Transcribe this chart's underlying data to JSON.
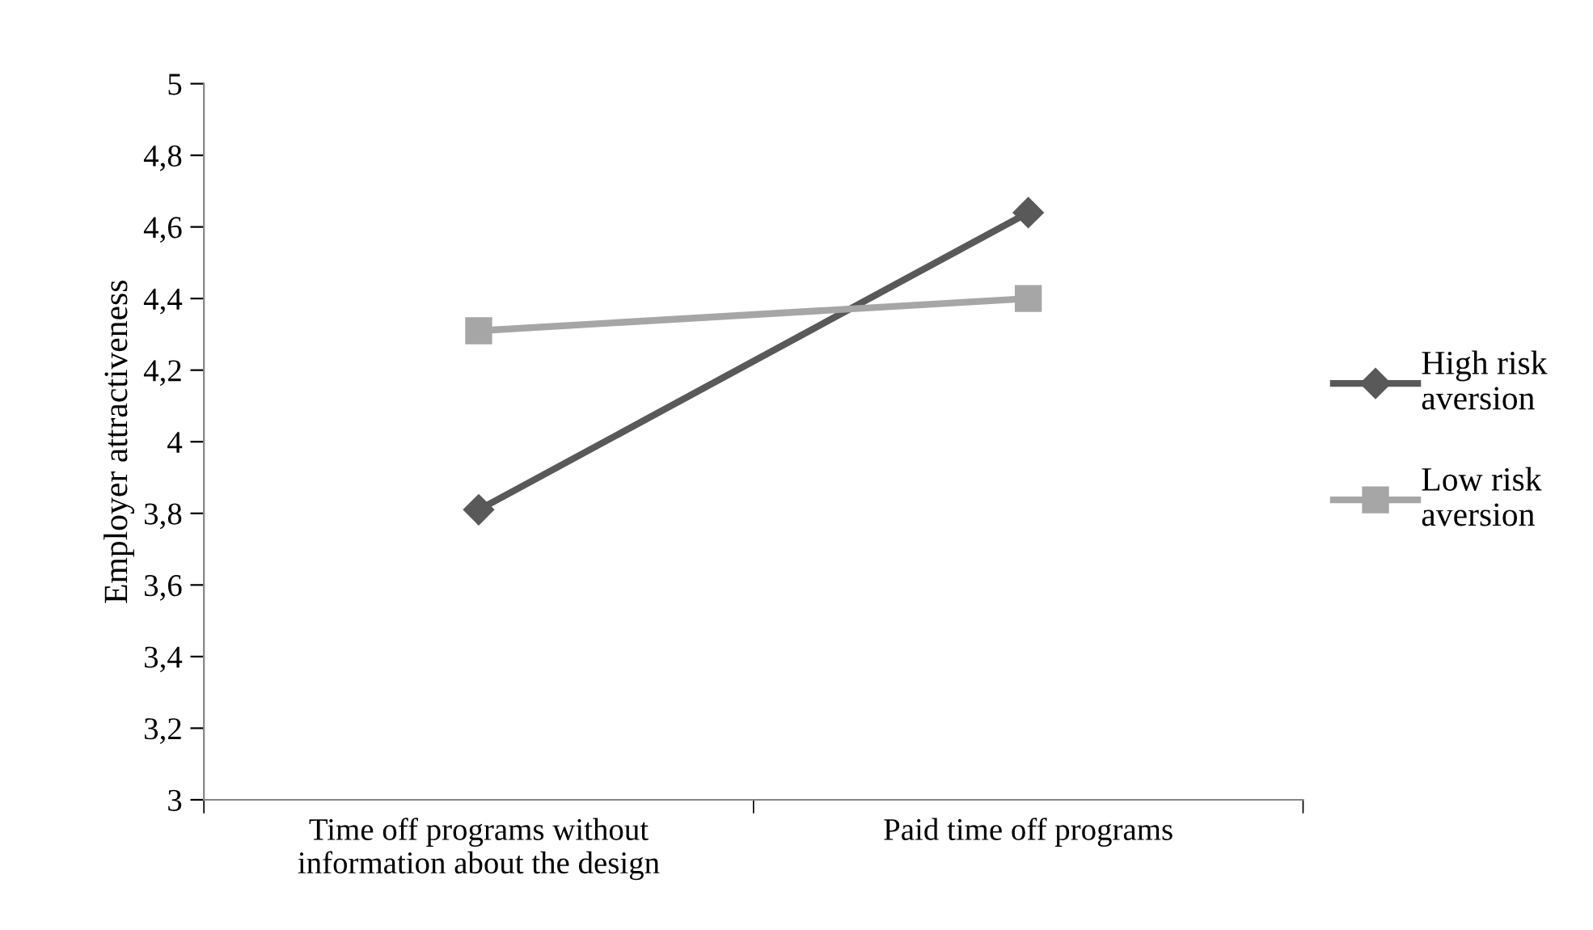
{
  "chart_data": {
    "type": "line",
    "ylabel": "Employer attractiveness",
    "categories": [
      "Time off programs without\ninformation about the design",
      "Paid time off programs"
    ],
    "series": [
      {
        "name": "High risk\naversion",
        "color": "#595959",
        "values": [
          3.81,
          4.64
        ],
        "marker": "diamond"
      },
      {
        "name": "Low risk\naversion",
        "color": "#a6a6a6",
        "values": [
          4.31,
          4.4
        ],
        "marker": "square"
      }
    ],
    "ylim": [
      3,
      5
    ],
    "yticks": [
      3,
      {
        "value": 3.2,
        "label": "3,2"
      },
      {
        "value": 3.4,
        "label": "3,4"
      },
      {
        "value": 3.6,
        "label": "3,6"
      },
      {
        "value": 3.8,
        "label": "3,8"
      },
      4,
      {
        "value": 4.2,
        "label": "4,2"
      },
      {
        "value": 4.4,
        "label": "4,4"
      },
      {
        "value": 4.6,
        "label": "4,6"
      },
      {
        "value": 4.8,
        "label": "4,8"
      },
      5
    ],
    "grid": false,
    "legend": "right",
    "line_style": "solid"
  }
}
